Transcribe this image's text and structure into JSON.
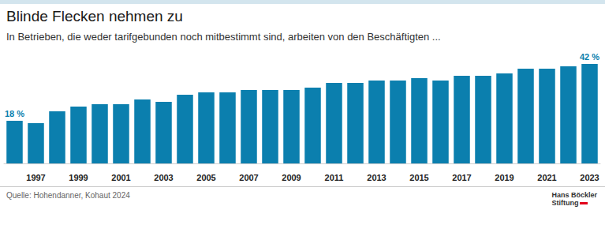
{
  "chart_data": {
    "type": "bar",
    "title": "Blinde Flecken nehmen zu",
    "subtitle": "In Betrieben, die weder tarifgebunden noch mitbestimmt sind, arbeiten von den Beschäftigten ...",
    "source": "Quelle: Hohendanner, Kohaut 2024",
    "logo": [
      "Hans Böckler",
      "Stiftung"
    ],
    "categories": [
      null,
      "1997",
      null,
      "1999",
      null,
      "2001",
      null,
      "2003",
      null,
      "2005",
      null,
      "2007",
      null,
      "2009",
      null,
      "2011",
      null,
      "2013",
      null,
      "2015",
      null,
      "2017",
      null,
      "2019",
      null,
      "2021",
      null,
      "2023"
    ],
    "values": [
      18,
      17,
      22,
      24,
      25,
      25,
      27,
      26,
      29,
      30,
      30,
      31,
      31,
      31,
      32,
      34,
      34,
      35,
      35,
      36,
      35,
      37,
      37,
      38,
      40,
      40,
      41,
      42
    ],
    "value_labels": [
      "18 %",
      null,
      null,
      null,
      null,
      null,
      null,
      null,
      null,
      null,
      null,
      null,
      null,
      null,
      null,
      null,
      null,
      null,
      null,
      null,
      null,
      null,
      null,
      null,
      null,
      null,
      null,
      "42 %"
    ],
    "data_labels": true,
    "color": "#0b7fae",
    "ylim": [
      0,
      45
    ],
    "tick_labels": "x",
    "grid": false
  }
}
